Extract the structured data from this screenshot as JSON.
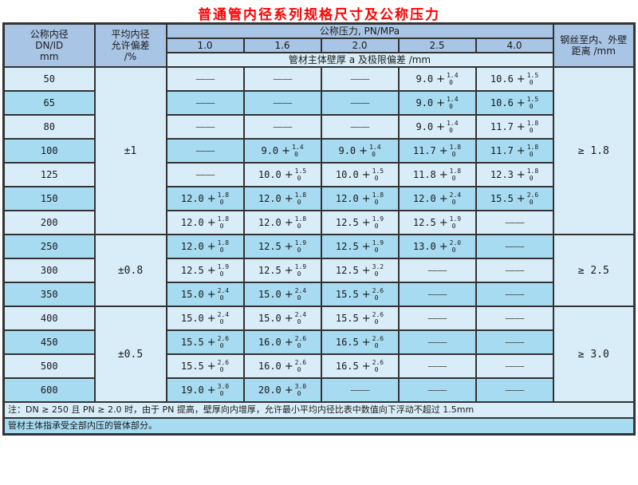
{
  "title": "普通管内径系列规格尺寸及公称压力",
  "colors": {
    "title_red": "#ff0000",
    "header_bg": "#a9c5e5",
    "row_light": "#d9edf8",
    "row_dark": "#a6dbf2",
    "border": "#333333"
  },
  "header": {
    "dn_lines": [
      "公称内径",
      "DN/ID",
      "mm"
    ],
    "deviation_lines": [
      "平均内径",
      "允许偏差",
      "/%"
    ],
    "pressure_title": "公称压力, PN/MPa",
    "pressures": [
      "1.0",
      "1.6",
      "2.0",
      "2.5",
      "4.0"
    ],
    "wall_caption": "管材主体壁厚 a 及极限偏差 /mm",
    "wire_title": "钢丝至内、外壁距离 /mm"
  },
  "dash": "——",
  "groups": [
    {
      "deviation": "±1",
      "wire": "≥ 1.8",
      "rows": [
        {
          "dn": "50",
          "cells": [
            null,
            null,
            null,
            {
              "v": "9.0",
              "up": "1.4",
              "low": "0"
            },
            {
              "v": "10.6",
              "up": "1.5",
              "low": "0"
            }
          ]
        },
        {
          "dn": "65",
          "cells": [
            null,
            null,
            null,
            {
              "v": "9.0",
              "up": "1.4",
              "low": "0"
            },
            {
              "v": "10.6",
              "up": "1.5",
              "low": "0"
            }
          ]
        },
        {
          "dn": "80",
          "cells": [
            null,
            null,
            null,
            {
              "v": "9.0",
              "up": "1.4",
              "low": "0"
            },
            {
              "v": "11.7",
              "up": "1.8",
              "low": "0"
            }
          ]
        },
        {
          "dn": "100",
          "cells": [
            null,
            {
              "v": "9.0",
              "up": "1.4",
              "low": "0"
            },
            {
              "v": "9.0",
              "up": "1.4",
              "low": "0"
            },
            {
              "v": "11.7",
              "up": "1.8",
              "low": "0"
            },
            {
              "v": "11.7",
              "up": "1.8",
              "low": "0"
            }
          ]
        },
        {
          "dn": "125",
          "cells": [
            null,
            {
              "v": "10.0",
              "up": "1.5",
              "low": "0"
            },
            {
              "v": "10.0",
              "up": "1.5",
              "low": "0"
            },
            {
              "v": "11.8",
              "up": "1.8",
              "low": "0"
            },
            {
              "v": "12.3",
              "up": "1.8",
              "low": "0"
            }
          ]
        },
        {
          "dn": "150",
          "cells": [
            {
              "v": "12.0",
              "up": "1.8",
              "low": "0"
            },
            {
              "v": "12.0",
              "up": "1.8",
              "low": "0"
            },
            {
              "v": "12.0",
              "up": "1.8",
              "low": "0"
            },
            {
              "v": "12.0",
              "up": "2.4",
              "low": "0"
            },
            {
              "v": "15.5",
              "up": "2.6",
              "low": "0"
            }
          ]
        },
        {
          "dn": "200",
          "cells": [
            {
              "v": "12.0",
              "up": "1.8",
              "low": "0"
            },
            {
              "v": "12.0",
              "up": "1.8",
              "low": "0"
            },
            {
              "v": "12.5",
              "up": "1.9",
              "low": "0"
            },
            {
              "v": "12.5",
              "up": "1.9",
              "low": "0"
            },
            null
          ]
        }
      ]
    },
    {
      "deviation": "±0.8",
      "wire": "≥ 2.5",
      "rows": [
        {
          "dn": "250",
          "cells": [
            {
              "v": "12.0",
              "up": "1.8",
              "low": "0"
            },
            {
              "v": "12.5",
              "up": "1.9",
              "low": "0"
            },
            {
              "v": "12.5",
              "up": "1.9",
              "low": "0"
            },
            {
              "v": "13.0",
              "up": "2.0",
              "low": "0"
            },
            null
          ]
        },
        {
          "dn": "300",
          "cells": [
            {
              "v": "12.5",
              "up": "1.9",
              "low": "0"
            },
            {
              "v": "12.5",
              "up": "1.9",
              "low": "0"
            },
            {
              "v": "12.5",
              "up": "3.2",
              "low": "0"
            },
            null,
            null
          ]
        },
        {
          "dn": "350",
          "cells": [
            {
              "v": "15.0",
              "up": "2.4",
              "low": "0"
            },
            {
              "v": "15.0",
              "up": "2.4",
              "low": "0"
            },
            {
              "v": "15.5",
              "up": "2.6",
              "low": "0"
            },
            null,
            null
          ]
        }
      ]
    },
    {
      "deviation": "±0.5",
      "wire": "≥ 3.0",
      "rows": [
        {
          "dn": "400",
          "cells": [
            {
              "v": "15.0",
              "up": "2.4",
              "low": "0"
            },
            {
              "v": "15.0",
              "up": "2.4",
              "low": "0"
            },
            {
              "v": "15.5",
              "up": "2.6",
              "low": "0"
            },
            null,
            null
          ]
        },
        {
          "dn": "450",
          "cells": [
            {
              "v": "15.5",
              "up": "2.6",
              "low": "0"
            },
            {
              "v": "16.0",
              "up": "2.6",
              "low": "0"
            },
            {
              "v": "16.5",
              "up": "2.6",
              "low": "0"
            },
            null,
            null
          ]
        },
        {
          "dn": "500",
          "cells": [
            {
              "v": "15.5",
              "up": "2.6",
              "low": "0"
            },
            {
              "v": "16.0",
              "up": "2.6",
              "low": "0"
            },
            {
              "v": "16.5",
              "up": "2.6",
              "low": "0"
            },
            null,
            null
          ]
        },
        {
          "dn": "600",
          "cells": [
            {
              "v": "19.0",
              "up": "3.0",
              "low": "0"
            },
            {
              "v": "20.0",
              "up": "3.0",
              "low": "0"
            },
            null,
            null,
            null
          ]
        }
      ]
    }
  ],
  "notes": [
    "注：DN ≥ 250 且 PN ≥ 2.0 时，由于 PN 提高，壁厚向内增厚，允许最小平均内径比表中数值向下浮动不超过 1.5mm",
    "管材主体指承受全部内压的管体部分。"
  ]
}
